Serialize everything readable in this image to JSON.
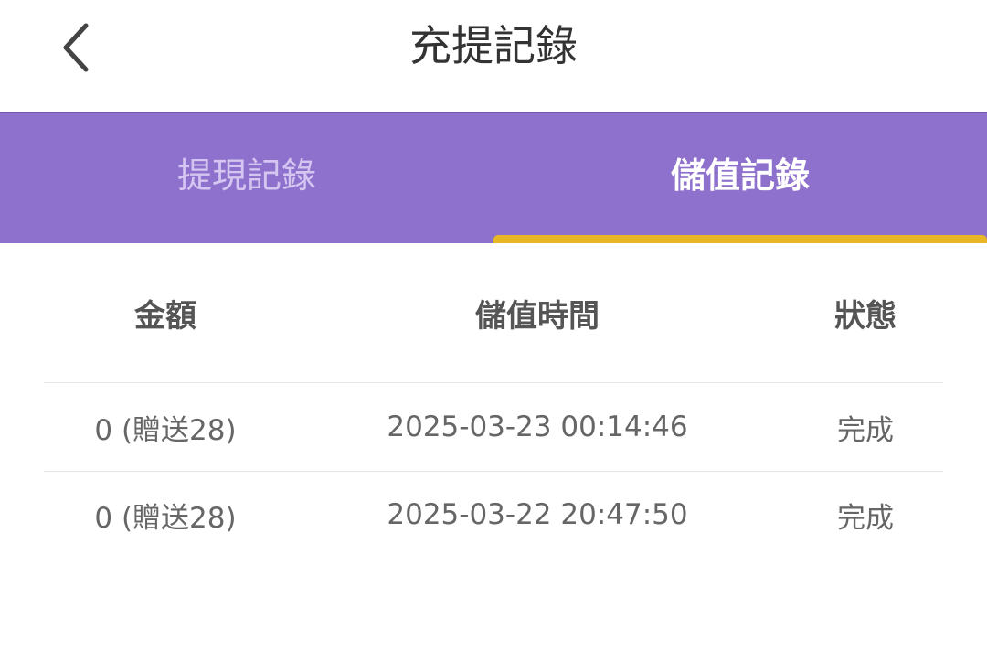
{
  "header": {
    "title": "充提記錄",
    "back_icon": "chevron-left-icon"
  },
  "tabs": [
    {
      "label": "提現記錄",
      "active": false
    },
    {
      "label": "儲值記錄",
      "active": true
    }
  ],
  "colors": {
    "tab_bar": "#8e71cd",
    "indicator": "#e9b627"
  },
  "table": {
    "columns": [
      "金額",
      "儲值時間",
      "狀態"
    ],
    "rows": [
      [
        "0 (贈送28)",
        "2025-03-23 00:14:46",
        "完成"
      ],
      [
        "0 (贈送28)",
        "2025-03-22 20:47:50",
        "完成"
      ]
    ]
  }
}
